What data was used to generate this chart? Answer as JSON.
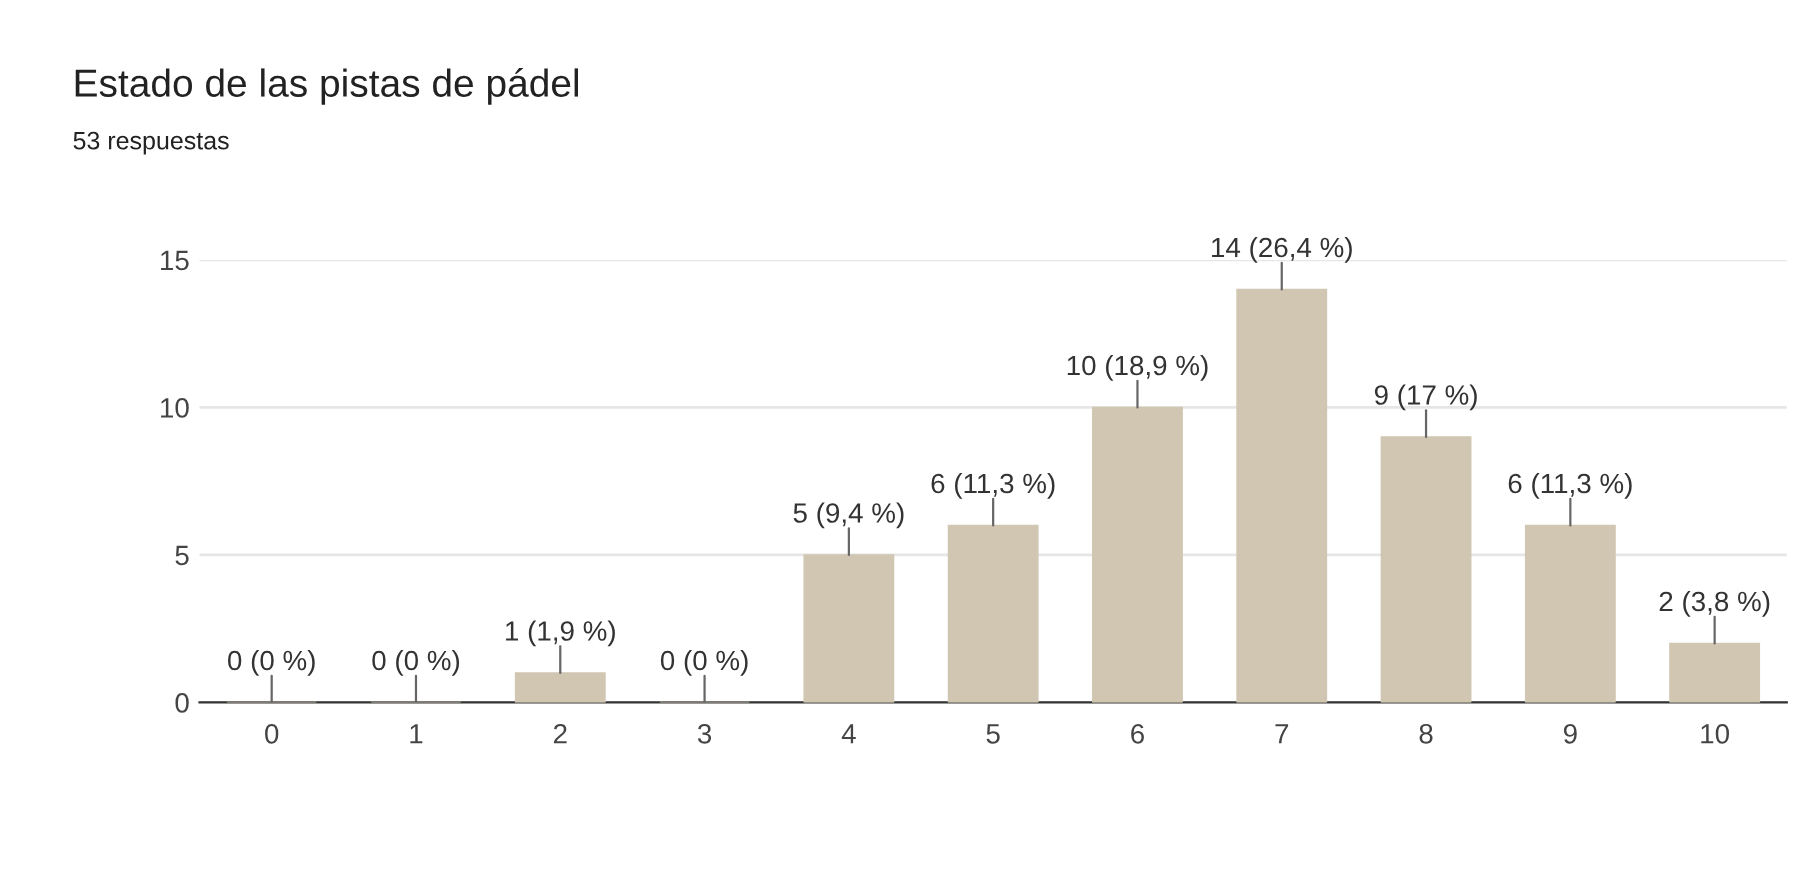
{
  "chart_data": {
    "type": "bar",
    "title": "Estado de las pistas de pádel",
    "subtitle": "53 respuestas",
    "categories": [
      "0",
      "1",
      "2",
      "3",
      "4",
      "5",
      "6",
      "7",
      "8",
      "9",
      "10"
    ],
    "values": [
      0,
      0,
      1,
      0,
      5,
      6,
      10,
      14,
      9,
      6,
      2
    ],
    "value_labels": [
      "0 (0 %)",
      "0 (0 %)",
      "1 (1,9 %)",
      "0 (0 %)",
      "5 (9,4 %)",
      "6 (11,3 %)",
      "10 (18,9 %)",
      "14 (26,4 %)",
      "9 (17 %)",
      "6 (11,3 %)",
      "2 (3,8 %)"
    ],
    "color": "#d0c6b1",
    "ylim": [
      0,
      15
    ],
    "yticks": [
      0,
      5,
      10,
      15
    ],
    "grid": "y",
    "legend": false
  }
}
